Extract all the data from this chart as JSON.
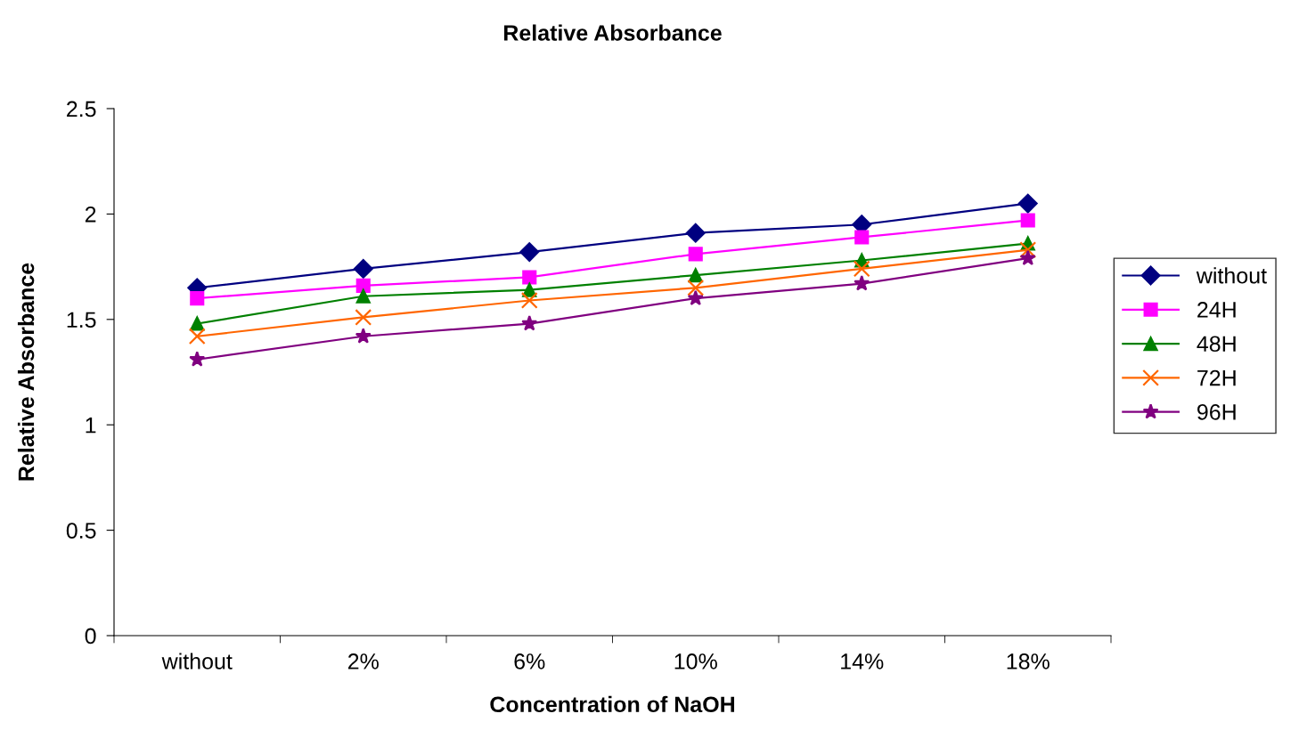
{
  "chart_data": {
    "type": "line",
    "title": "Relative Absorbance",
    "xlabel": "Concentration of NaOH",
    "ylabel": "Relative Absorbance",
    "categories": [
      "without",
      "2%",
      "6%",
      "10%",
      "14%",
      "18%"
    ],
    "ylim": [
      0,
      2.5
    ],
    "yticks": [
      0,
      0.5,
      1,
      1.5,
      2,
      2.5
    ],
    "grid": false,
    "legend": "right",
    "line_style": "solid",
    "series": [
      {
        "name": "without",
        "color": "#000080",
        "marker": "diamond",
        "values": [
          1.65,
          1.74,
          1.82,
          1.91,
          1.95,
          2.05
        ]
      },
      {
        "name": "24H",
        "color": "#ff00ff",
        "marker": "square",
        "values": [
          1.6,
          1.66,
          1.7,
          1.81,
          1.89,
          1.97
        ]
      },
      {
        "name": "48H",
        "color": "#008000",
        "marker": "triangle",
        "values": [
          1.48,
          1.61,
          1.64,
          1.71,
          1.78,
          1.86
        ]
      },
      {
        "name": "72H",
        "color": "#ff6600",
        "marker": "cross",
        "values": [
          1.42,
          1.51,
          1.59,
          1.65,
          1.74,
          1.83
        ]
      },
      {
        "name": "96H",
        "color": "#800080",
        "marker": "star",
        "values": [
          1.31,
          1.42,
          1.48,
          1.6,
          1.67,
          1.79
        ]
      }
    ]
  }
}
